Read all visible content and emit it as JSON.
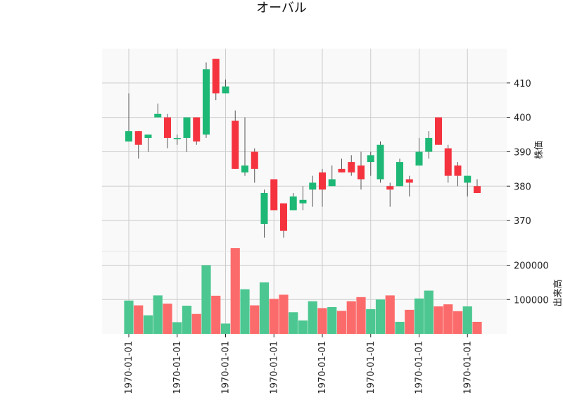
{
  "chart_data": {
    "type": "candlestick",
    "title": "オーバル",
    "price_ylabel": "株価",
    "volume_ylabel": "出来高",
    "price_ylim": [
      361,
      420
    ],
    "price_yticks": [
      370,
      380,
      390,
      400,
      410
    ],
    "volume_ylim": [
      0,
      240000
    ],
    "volume_yticks": [
      100000,
      200000
    ],
    "volume_ytick_labels": [
      "100000",
      "200000"
    ],
    "x_tick_labels": [
      "1970-01-01",
      "1970-01-01",
      "1970-01-01",
      "1970-01-01",
      "1970-01-01",
      "1970-01-01",
      "1970-01-01",
      "1970-01-01"
    ],
    "x_tick_indices": [
      0,
      5,
      10,
      15,
      20,
      25,
      30,
      35
    ],
    "colors": {
      "up": "#1db875",
      "down": "#f5333f",
      "up_volume": "#4cc791",
      "down_volume": "#fc6b6b",
      "wick": "#555555",
      "grid": "#cccccc",
      "panel_bg": "#f9f9f9"
    },
    "grid": true,
    "candles": [
      {
        "o": 393,
        "h": 407,
        "l": 393,
        "c": 396,
        "v": 97000
      },
      {
        "o": 396,
        "h": 396,
        "l": 388,
        "c": 392,
        "v": 83000
      },
      {
        "o": 394,
        "h": 395,
        "l": 390,
        "c": 395,
        "v": 54000
      },
      {
        "o": 400,
        "h": 404,
        "l": 400,
        "c": 401,
        "v": 112000
      },
      {
        "o": 400,
        "h": 401,
        "l": 391,
        "c": 394,
        "v": 88000
      },
      {
        "o": 394,
        "h": 395,
        "l": 392,
        "c": 394,
        "v": 34000
      },
      {
        "o": 394,
        "h": 400,
        "l": 390,
        "c": 400,
        "v": 82000
      },
      {
        "o": 400,
        "h": 400,
        "l": 392,
        "c": 393,
        "v": 58000
      },
      {
        "o": 395,
        "h": 416,
        "l": 394,
        "c": 414,
        "v": 200000
      },
      {
        "o": 417,
        "h": 417,
        "l": 405,
        "c": 407,
        "v": 111000
      },
      {
        "o": 407,
        "h": 411,
        "l": 407,
        "c": 409,
        "v": 30000
      },
      {
        "o": 399,
        "h": 402,
        "l": 385,
        "c": 385,
        "v": 250000
      },
      {
        "o": 384,
        "h": 400,
        "l": 383,
        "c": 386,
        "v": 130000
      },
      {
        "o": 390,
        "h": 391,
        "l": 381,
        "c": 385,
        "v": 83000
      },
      {
        "o": 369,
        "h": 379,
        "l": 365,
        "c": 378,
        "v": 150000
      },
      {
        "o": 382,
        "h": 382,
        "l": 373,
        "c": 373,
        "v": 102000
      },
      {
        "o": 375,
        "h": 375,
        "l": 365,
        "c": 367,
        "v": 114000
      },
      {
        "o": 373,
        "h": 378,
        "l": 373,
        "c": 377,
        "v": 63000
      },
      {
        "o": 375,
        "h": 380,
        "l": 373,
        "c": 376,
        "v": 39000
      },
      {
        "o": 379,
        "h": 383,
        "l": 374,
        "c": 381,
        "v": 95000
      },
      {
        "o": 384,
        "h": 385,
        "l": 374,
        "c": 379,
        "v": 75000
      },
      {
        "o": 380,
        "h": 386,
        "l": 380,
        "c": 382,
        "v": 78000
      },
      {
        "o": 385,
        "h": 388,
        "l": 384,
        "c": 384,
        "v": 67000
      },
      {
        "o": 387,
        "h": 389,
        "l": 383,
        "c": 384,
        "v": 95000
      },
      {
        "o": 386,
        "h": 390,
        "l": 379,
        "c": 382,
        "v": 107000
      },
      {
        "o": 387,
        "h": 390,
        "l": 383,
        "c": 389,
        "v": 72000
      },
      {
        "o": 382,
        "h": 393,
        "l": 381,
        "c": 392,
        "v": 100000
      },
      {
        "o": 380,
        "h": 381,
        "l": 374,
        "c": 379,
        "v": 112000
      },
      {
        "o": 380,
        "h": 388,
        "l": 380,
        "c": 387,
        "v": 35000
      },
      {
        "o": 382,
        "h": 383,
        "l": 377,
        "c": 381,
        "v": 70000
      },
      {
        "o": 386,
        "h": 394,
        "l": 386,
        "c": 390,
        "v": 103000
      },
      {
        "o": 390,
        "h": 396,
        "l": 388,
        "c": 394,
        "v": 126000
      },
      {
        "o": 400,
        "h": 400,
        "l": 392,
        "c": 392,
        "v": 80000
      },
      {
        "o": 391,
        "h": 392,
        "l": 381,
        "c": 383,
        "v": 86000
      },
      {
        "o": 386,
        "h": 387,
        "l": 380,
        "c": 383,
        "v": 66000
      },
      {
        "o": 381,
        "h": 383,
        "l": 377,
        "c": 383,
        "v": 80000
      },
      {
        "o": 380,
        "h": 382,
        "l": 378,
        "c": 378,
        "v": 35000
      }
    ]
  }
}
